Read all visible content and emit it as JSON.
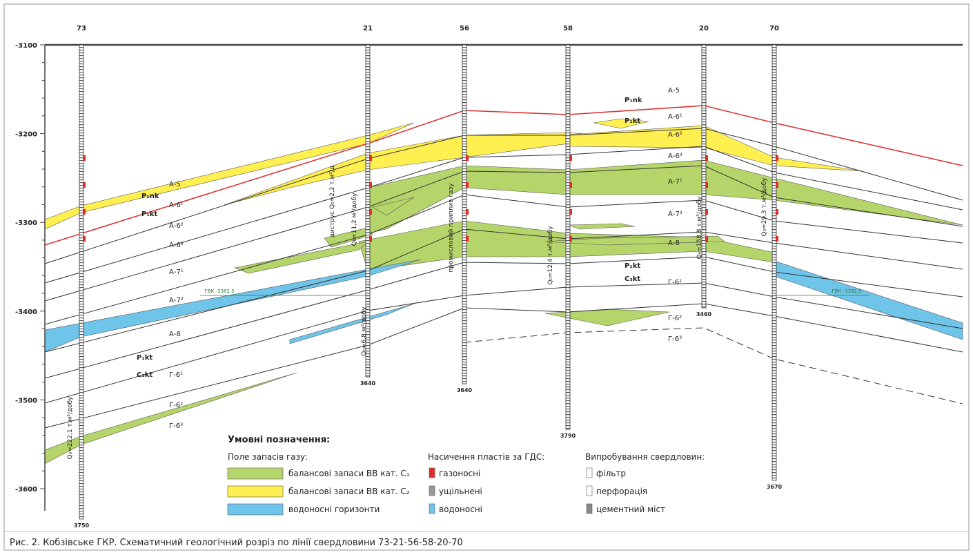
{
  "figure": {
    "depth_axis": {
      "ticks": [
        -3100,
        -3200,
        -3300,
        -3400,
        -3500,
        -3600
      ]
    },
    "wells": [
      {
        "name": "73",
        "bottom": "3750"
      },
      {
        "name": "21",
        "bottom": "3640"
      },
      {
        "name": "56",
        "bottom": "3640"
      },
      {
        "name": "58",
        "bottom": "3790"
      },
      {
        "name": "20",
        "bottom": "3460"
      },
      {
        "name": "70",
        "bottom": "3670"
      }
    ],
    "layer_labels_left": [
      "А-5",
      "P₁nk",
      "А-6¹",
      "P₁kt",
      "А-6²",
      "А-6³",
      "А-7¹",
      "А-7²",
      "А-8",
      "P₁kt",
      "C₃kt",
      "Г-6¹",
      "Г-6²",
      "Г-6³"
    ],
    "layer_labels_right": [
      "А-5",
      "P₁nk",
      "А-6¹",
      "P₁kt",
      "А-6²",
      "А-6³",
      "А-7¹",
      "А-7²",
      "А-8",
      "P₁kt",
      "C₃kt",
      "Г-6¹",
      "Г-6²",
      "Г-6³"
    ],
    "test_results": [
      "Q₀=222,1 т.м³/добу",
      "Q₀=6,8 м³/добу",
      "Q₀=11,2 м³/добу",
      "диструс Q₀=2,2 т.м³/д",
      "промисловий приплив газу",
      "Q₀=12,4 т.м³/добу",
      "Q₀=158,8 т.м³/добу",
      "Q₀=29,3 т.м³/добу"
    ],
    "gwc_labels": [
      "ГВК -3382,5",
      "ГВК -3382,5"
    ],
    "legend": {
      "title": "Умовні позначення:",
      "groups": [
        {
          "heading": "Поле запасів газу:",
          "items": [
            "балансові запаси ВВ кат. С₁",
            "балансові запаси ВВ кат. С₂",
            "водоносні горизонти"
          ]
        },
        {
          "heading": "Насичення пластів за ГДС:",
          "items": [
            "газоносні",
            "ущільнені",
            "водоносні"
          ]
        },
        {
          "heading": "Випробування свердловин:",
          "items": [
            "фільтр",
            "перфорація",
            "цементний міст"
          ]
        }
      ]
    },
    "caption": "Рис. 2. Кобзівське ГКР. Схематичний геологічний розріз по лінії свердловини 73-21-56-58-20-70"
  }
}
